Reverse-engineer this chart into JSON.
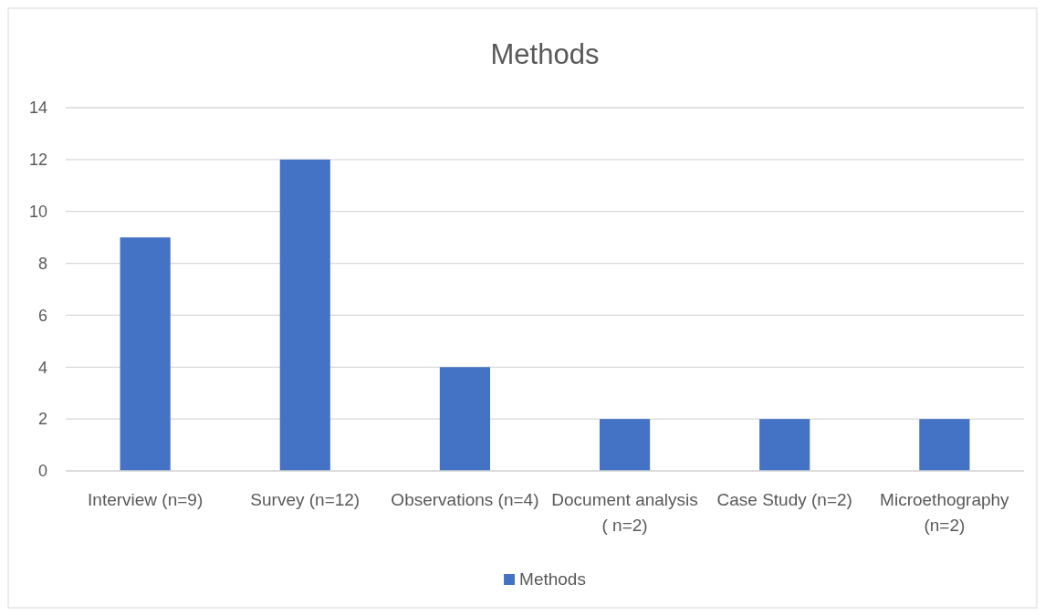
{
  "chart_data": {
    "type": "bar",
    "title": "Methods",
    "categories": [
      "Interview (n=9)",
      "Survey (n=12)",
      "Observations (n=4)",
      "Document analysis ( n=2)",
      "Case Study (n=2)",
      "Microethography (n=2)"
    ],
    "series": [
      {
        "name": "Methods",
        "color": "#4472c4",
        "values": [
          9,
          12,
          4,
          2,
          2,
          2
        ]
      }
    ],
    "ylim": [
      0,
      14
    ],
    "yticks": [
      0,
      2,
      4,
      6,
      8,
      10,
      12,
      14
    ],
    "grid": "y",
    "legend": "bottom"
  }
}
